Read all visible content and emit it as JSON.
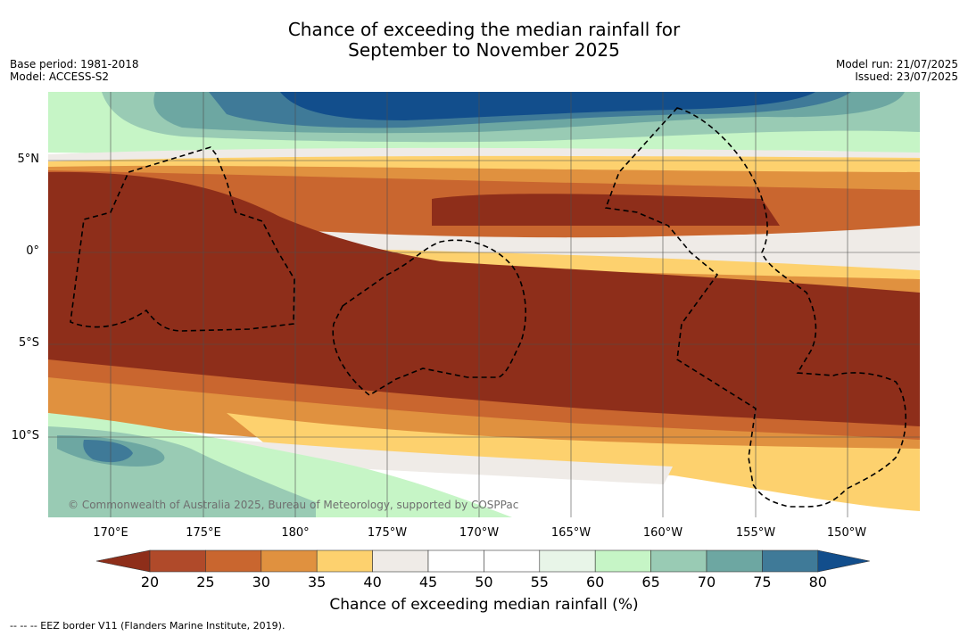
{
  "title_line1": "Chance of exceeding the median rainfall for",
  "title_line2": "September to November 2025",
  "meta_left": {
    "base_period": "Base period: 1981-2018",
    "model": "Model: ACCESS-S2"
  },
  "meta_right": {
    "model_run": "Model run: 21/07/2025",
    "issued": "Issued: 23/07/2025"
  },
  "lat_labels": [
    "5°N",
    "0°",
    "5°S",
    "10°S"
  ],
  "lon_labels": [
    "170°E",
    "175°E",
    "180°",
    "175°W",
    "170°W",
    "165°W",
    "160°W",
    "155°W",
    "150°W"
  ],
  "copyright": "© Commonwealth of Australia 2025, Bureau of Meteorology, supported by COSPPac",
  "colorbar": {
    "ticks": [
      "20",
      "25",
      "30",
      "35",
      "40",
      "45",
      "50",
      "55",
      "60",
      "65",
      "70",
      "75",
      "80"
    ],
    "colors": [
      "#8e2e1a",
      "#b04a2a",
      "#c9662f",
      "#e0913f",
      "#fdd16e",
      "#efebe7",
      "#ffffff",
      "#ffffff",
      "#e8f5e8",
      "#c6f5c6",
      "#99cbb4",
      "#6da7a2",
      "#3f7a98",
      "#124e8c"
    ],
    "title": "Chance of exceeding median rainfall (%)"
  },
  "footer": "--  --  -- EEZ border V11 (Flanders Marine Institute, 2019)."
}
